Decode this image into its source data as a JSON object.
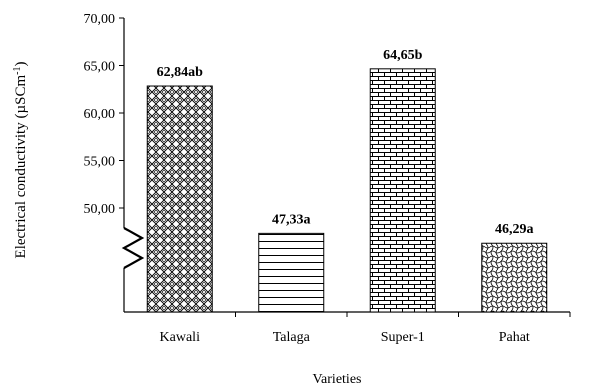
{
  "chart_data": {
    "type": "bar",
    "title": "",
    "xlabel": "Varieties",
    "ylabel": "Electrical conductivity  (µSCm",
    "ylabel_sup": "-1",
    "ylabel_close": ")",
    "categories": [
      "Kawali",
      "Talaga",
      "Super-1",
      "Pahat"
    ],
    "values": [
      62.84,
      47.33,
      64.65,
      46.29
    ],
    "data_labels": [
      "62,84ab",
      "47,33a",
      "64,65b",
      "46,29a"
    ],
    "patterns": [
      "diamond-lattice",
      "horizontal-lines",
      "brick",
      "wave-lattice"
    ],
    "ylim": [
      50,
      70
    ],
    "axis_break": true,
    "yticks": [
      50,
      55,
      60,
      65,
      70
    ],
    "ytick_labels": [
      "50,00",
      "55,00",
      "60,00",
      "65,00",
      "70,00"
    ],
    "grid": false,
    "legend": "none"
  }
}
